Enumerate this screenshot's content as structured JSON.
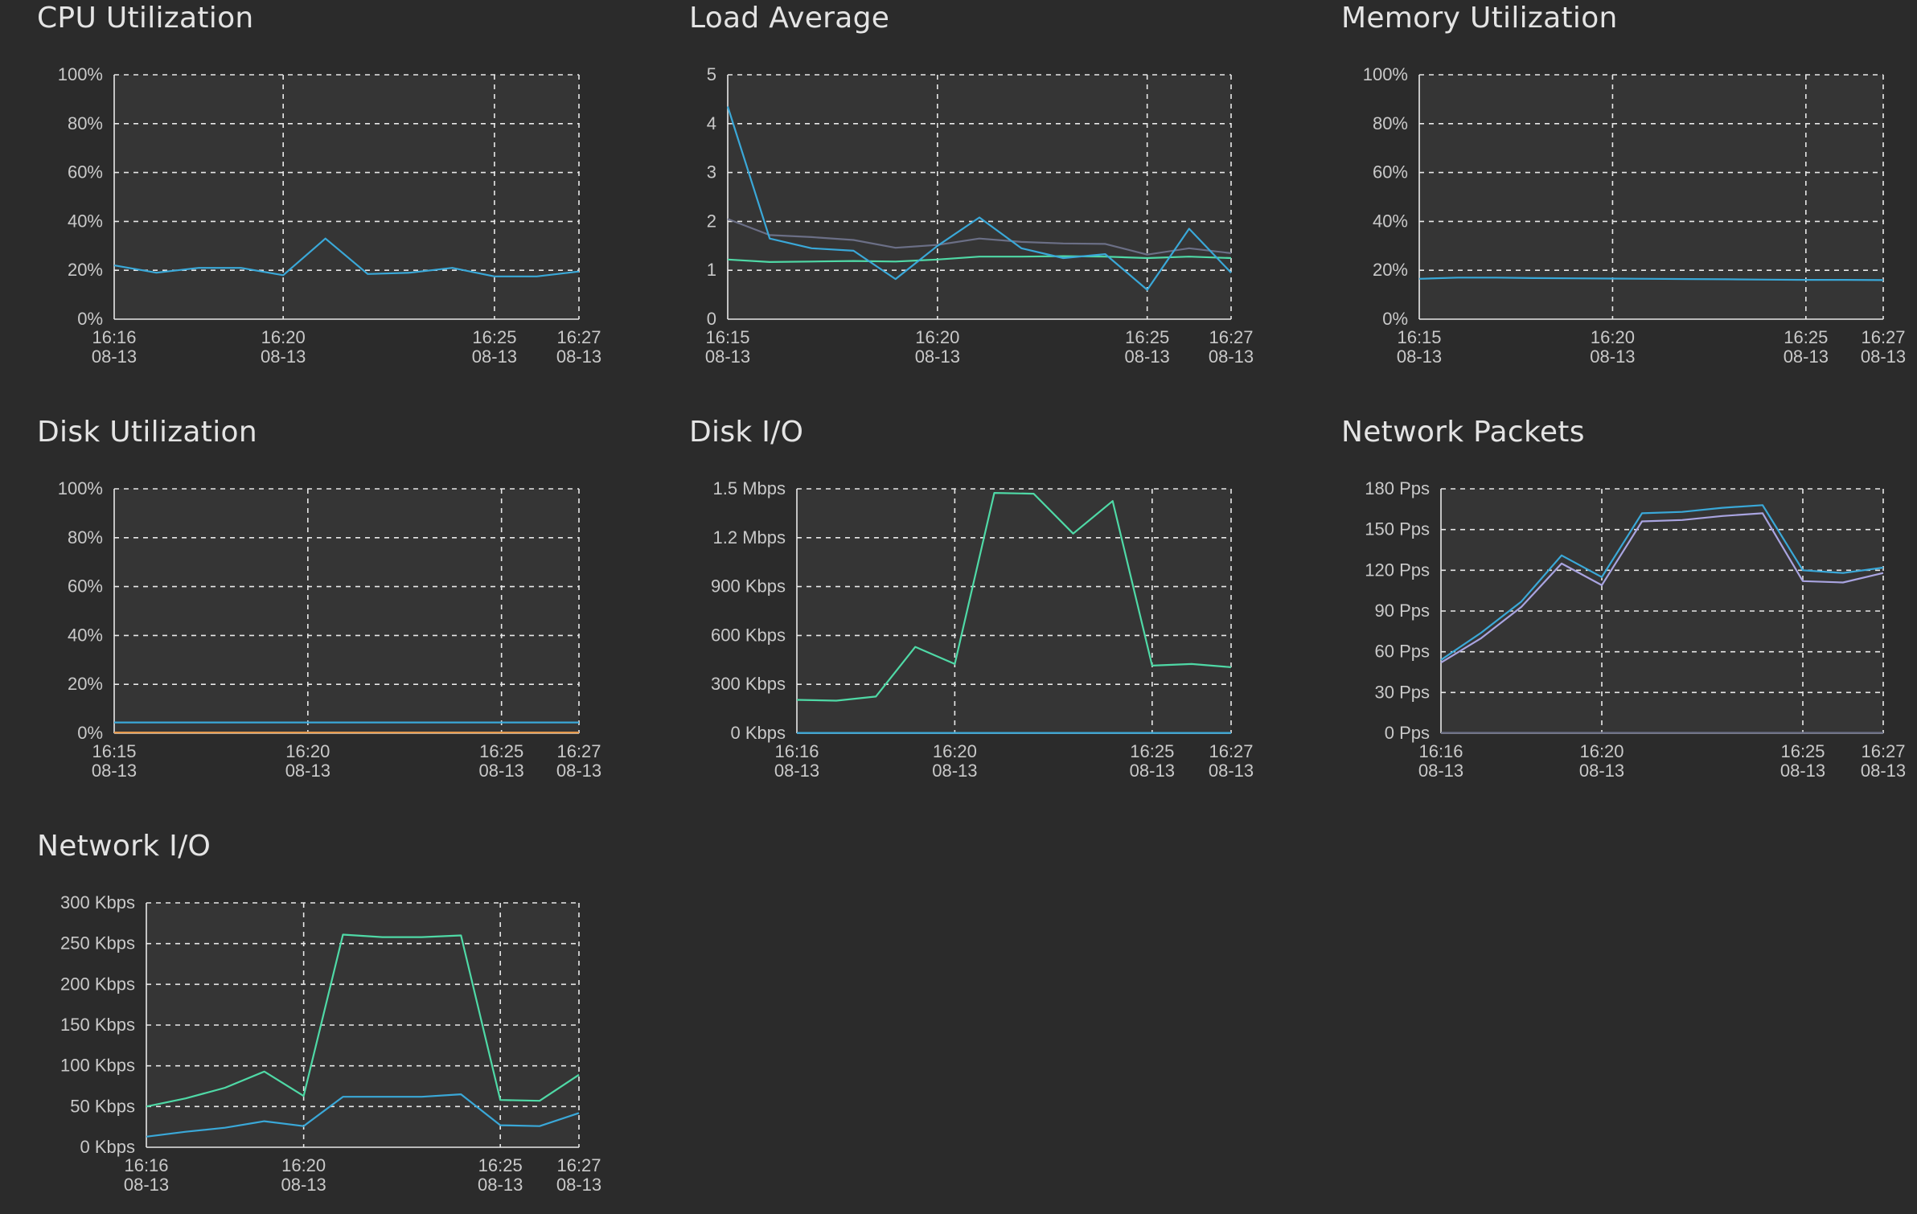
{
  "panels": [
    {
      "id": "cpu",
      "title": "CPU Utilization"
    },
    {
      "id": "load",
      "title": "Load Average"
    },
    {
      "id": "mem",
      "title": "Memory Utilization"
    },
    {
      "id": "disk",
      "title": "Disk Utilization"
    },
    {
      "id": "diskio",
      "title": "Disk I/O"
    },
    {
      "id": "netpkt",
      "title": "Network Packets"
    },
    {
      "id": "netio",
      "title": "Network I/O"
    }
  ],
  "colors": {
    "background": "#2b2b2b",
    "plot_background": "#353535",
    "grid": "#e8e8e8",
    "blue": "#3aa8d8",
    "green": "#4fd9a6",
    "gray_series": "#6b6f86",
    "lavender": "#a9a4e0",
    "orange": "#e69a4d"
  },
  "chart_data": [
    {
      "id": "cpu",
      "type": "line",
      "title": "CPU Utilization",
      "ylim": [
        0,
        100
      ],
      "yticks": [
        "0%",
        "20%",
        "40%",
        "60%",
        "80%",
        "100%"
      ],
      "xrange": [
        "16:16",
        "16:27"
      ],
      "xticks": [
        {
          "x": "16:16",
          "label": [
            "16:16",
            "08-13"
          ],
          "grid": false
        },
        {
          "x": "16:20",
          "label": [
            "16:20",
            "08-13"
          ],
          "grid": true
        },
        {
          "x": "16:25",
          "label": [
            "16:25",
            "08-13"
          ],
          "grid": true
        },
        {
          "x": "16:27",
          "label": [
            "16:27",
            "08-13"
          ],
          "grid": false
        }
      ],
      "series": [
        {
          "color": "#3aa8d8",
          "x": [
            "16:16",
            "16:17",
            "16:18",
            "16:19",
            "16:20",
            "16:21",
            "16:22",
            "16:23",
            "16:24",
            "16:25",
            "16:26",
            "16:27"
          ],
          "y": [
            22,
            19,
            21,
            21,
            18,
            33,
            18.5,
            19,
            21,
            17.5,
            17.5,
            19.5
          ]
        }
      ],
      "grid": true
    },
    {
      "id": "load",
      "type": "line",
      "title": "Load Average",
      "ylim": [
        0,
        5
      ],
      "yticks": [
        "0",
        "1",
        "2",
        "3",
        "4",
        "5"
      ],
      "xrange": [
        "16:15",
        "16:27"
      ],
      "xticks": [
        {
          "x": "16:15",
          "label": [
            "16:15",
            "08-13"
          ],
          "grid": false
        },
        {
          "x": "16:20",
          "label": [
            "16:20",
            "08-13"
          ],
          "grid": true
        },
        {
          "x": "16:25",
          "label": [
            "16:25",
            "08-13"
          ],
          "grid": true
        },
        {
          "x": "16:27",
          "label": [
            "16:27",
            "08-13"
          ],
          "grid": false
        }
      ],
      "series": [
        {
          "color": "#6b6f86",
          "x": [
            "16:15",
            "16:16",
            "16:17",
            "16:18",
            "16:19",
            "16:20",
            "16:21",
            "16:22",
            "16:23",
            "16:24",
            "16:25",
            "16:26",
            "16:27"
          ],
          "y": [
            2.05,
            1.72,
            1.68,
            1.62,
            1.46,
            1.52,
            1.65,
            1.58,
            1.55,
            1.54,
            1.32,
            1.45,
            1.35
          ]
        },
        {
          "color": "#4fd9a6",
          "x": [
            "16:15",
            "16:16",
            "16:17",
            "16:18",
            "16:19",
            "16:20",
            "16:21",
            "16:22",
            "16:23",
            "16:24",
            "16:25",
            "16:26",
            "16:27"
          ],
          "y": [
            1.22,
            1.17,
            1.18,
            1.19,
            1.18,
            1.22,
            1.28,
            1.28,
            1.29,
            1.28,
            1.25,
            1.28,
            1.25
          ]
        },
        {
          "color": "#3aa8d8",
          "x": [
            "16:15",
            "16:16",
            "16:17",
            "16:18",
            "16:19",
            "16:20",
            "16:21",
            "16:22",
            "16:23",
            "16:24",
            "16:25",
            "16:26",
            "16:27"
          ],
          "y": [
            4.35,
            1.65,
            1.45,
            1.4,
            0.82,
            1.5,
            2.08,
            1.45,
            1.25,
            1.33,
            0.6,
            1.85,
            0.95
          ]
        }
      ],
      "grid": true
    },
    {
      "id": "mem",
      "type": "line",
      "title": "Memory Utilization",
      "ylim": [
        0,
        100
      ],
      "yticks": [
        "0%",
        "20%",
        "40%",
        "60%",
        "80%",
        "100%"
      ],
      "xrange": [
        "16:15",
        "16:27"
      ],
      "xticks": [
        {
          "x": "16:15",
          "label": [
            "16:15",
            "08-13"
          ],
          "grid": false
        },
        {
          "x": "16:20",
          "label": [
            "16:20",
            "08-13"
          ],
          "grid": true
        },
        {
          "x": "16:25",
          "label": [
            "16:25",
            "08-13"
          ],
          "grid": true
        },
        {
          "x": "16:27",
          "label": [
            "16:27",
            "08-13"
          ],
          "grid": false
        }
      ],
      "series": [
        {
          "color": "#3aa8d8",
          "x": [
            "16:15",
            "16:16",
            "16:17",
            "16:18",
            "16:19",
            "16:20",
            "16:21",
            "16:22",
            "16:23",
            "16:24",
            "16:25",
            "16:26",
            "16:27"
          ],
          "y": [
            16.5,
            17,
            17,
            16.8,
            16.7,
            16.6,
            16.5,
            16.4,
            16.3,
            16.2,
            16.1,
            16.1,
            16
          ]
        }
      ],
      "grid": true
    },
    {
      "id": "disk",
      "type": "line",
      "title": "Disk Utilization",
      "ylim": [
        0,
        100
      ],
      "yticks": [
        "0%",
        "20%",
        "40%",
        "60%",
        "80%",
        "100%"
      ],
      "xrange": [
        "16:15",
        "16:27"
      ],
      "xticks": [
        {
          "x": "16:15",
          "label": [
            "16:15",
            "08-13"
          ],
          "grid": false
        },
        {
          "x": "16:20",
          "label": [
            "16:20",
            "08-13"
          ],
          "grid": true
        },
        {
          "x": "16:25",
          "label": [
            "16:25",
            "08-13"
          ],
          "grid": true
        },
        {
          "x": "16:27",
          "label": [
            "16:27",
            "08-13"
          ],
          "grid": false
        }
      ],
      "series": [
        {
          "color": "#e69a4d",
          "x": [
            "16:15",
            "16:27"
          ],
          "y": [
            0.3,
            0.3
          ]
        },
        {
          "color": "#3aa8d8",
          "x": [
            "16:15",
            "16:16",
            "16:17",
            "16:18",
            "16:19",
            "16:20",
            "16:21",
            "16:22",
            "16:23",
            "16:24",
            "16:25",
            "16:26",
            "16:27"
          ],
          "y": [
            4.4,
            4.4,
            4.4,
            4.4,
            4.4,
            4.4,
            4.4,
            4.4,
            4.4,
            4.4,
            4.4,
            4.4,
            4.4
          ]
        }
      ],
      "grid": true
    },
    {
      "id": "diskio",
      "type": "line",
      "title": "Disk I/O",
      "ylim": [
        0,
        1500
      ],
      "yticks": [
        "0 Kbps",
        "300 Kbps",
        "600 Kbps",
        "900 Kbps",
        "1.2 Mbps",
        "1.5 Mbps"
      ],
      "xrange": [
        "16:16",
        "16:27"
      ],
      "xticks": [
        {
          "x": "16:16",
          "label": [
            "16:16",
            "08-13"
          ],
          "grid": false
        },
        {
          "x": "16:20",
          "label": [
            "16:20",
            "08-13"
          ],
          "grid": true
        },
        {
          "x": "16:25",
          "label": [
            "16:25",
            "08-13"
          ],
          "grid": true
        },
        {
          "x": "16:27",
          "label": [
            "16:27",
            "08-13"
          ],
          "grid": false
        }
      ],
      "series": [
        {
          "color": "#4fd9a6",
          "x": [
            "16:16",
            "16:17",
            "16:18",
            "16:19",
            "16:20",
            "16:21",
            "16:22",
            "16:23",
            "16:24",
            "16:25",
            "16:26",
            "16:27"
          ],
          "y": [
            205,
            200,
            225,
            530,
            425,
            1475,
            1470,
            1225,
            1425,
            415,
            425,
            405
          ]
        },
        {
          "color": "#3aa8d8",
          "x": [
            "16:16",
            "16:27"
          ],
          "y": [
            2,
            2
          ]
        }
      ],
      "grid": true
    },
    {
      "id": "netpkt",
      "type": "line",
      "title": "Network Packets",
      "ylim": [
        0,
        180
      ],
      "yticks": [
        "0 Pps",
        "30 Pps",
        "60 Pps",
        "90 Pps",
        "120 Pps",
        "150 Pps",
        "180 Pps"
      ],
      "xrange": [
        "16:16",
        "16:27"
      ],
      "xticks": [
        {
          "x": "16:16",
          "label": [
            "16:16",
            "08-13"
          ],
          "grid": false
        },
        {
          "x": "16:20",
          "label": [
            "16:20",
            "08-13"
          ],
          "grid": true
        },
        {
          "x": "16:25",
          "label": [
            "16:25",
            "08-13"
          ],
          "grid": true
        },
        {
          "x": "16:27",
          "label": [
            "16:27",
            "08-13"
          ],
          "grid": false
        }
      ],
      "series": [
        {
          "color": "#a9a4e0",
          "x": [
            "16:16",
            "16:17",
            "16:18",
            "16:19",
            "16:20",
            "16:21",
            "16:22",
            "16:23",
            "16:24",
            "16:25",
            "16:26",
            "16:27"
          ],
          "y": [
            52,
            70,
            93,
            125,
            109,
            156,
            157,
            160,
            162,
            112,
            111,
            118
          ]
        },
        {
          "color": "#3aa8d8",
          "x": [
            "16:16",
            "16:17",
            "16:18",
            "16:19",
            "16:20",
            "16:21",
            "16:22",
            "16:23",
            "16:24",
            "16:25",
            "16:26",
            "16:27"
          ],
          "y": [
            54,
            74,
            97,
            131,
            115,
            162,
            163,
            166,
            168,
            120,
            118,
            122
          ]
        },
        {
          "color": "#6b6f86",
          "x": [
            "16:16",
            "16:27"
          ],
          "y": [
            0.3,
            0.3
          ]
        }
      ],
      "grid": true
    },
    {
      "id": "netio",
      "type": "line",
      "title": "Network I/O",
      "ylim": [
        0,
        300
      ],
      "yticks": [
        "0 Kbps",
        "50 Kbps",
        "100 Kbps",
        "150 Kbps",
        "200 Kbps",
        "250 Kbps",
        "300 Kbps"
      ],
      "xrange": [
        "16:16",
        "16:27"
      ],
      "xticks": [
        {
          "x": "16:16",
          "label": [
            "16:16",
            "08-13"
          ],
          "grid": false
        },
        {
          "x": "16:20",
          "label": [
            "16:20",
            "08-13"
          ],
          "grid": true
        },
        {
          "x": "16:25",
          "label": [
            "16:25",
            "08-13"
          ],
          "grid": true
        },
        {
          "x": "16:27",
          "label": [
            "16:27",
            "08-13"
          ],
          "grid": false
        }
      ],
      "series": [
        {
          "color": "#4fd9a6",
          "x": [
            "16:16",
            "16:17",
            "16:18",
            "16:19",
            "16:20",
            "16:21",
            "16:22",
            "16:23",
            "16:24",
            "16:25",
            "16:26",
            "16:27"
          ],
          "y": [
            50,
            60,
            73,
            93,
            63,
            261,
            258,
            258,
            260,
            58,
            57,
            89
          ]
        },
        {
          "color": "#3aa8d8",
          "x": [
            "16:16",
            "16:17",
            "16:18",
            "16:19",
            "16:20",
            "16:21",
            "16:22",
            "16:23",
            "16:24",
            "16:25",
            "16:26",
            "16:27"
          ],
          "y": [
            13,
            19,
            24,
            32,
            26,
            62,
            62,
            62,
            65,
            27,
            26,
            42
          ]
        }
      ],
      "grid": true
    }
  ]
}
